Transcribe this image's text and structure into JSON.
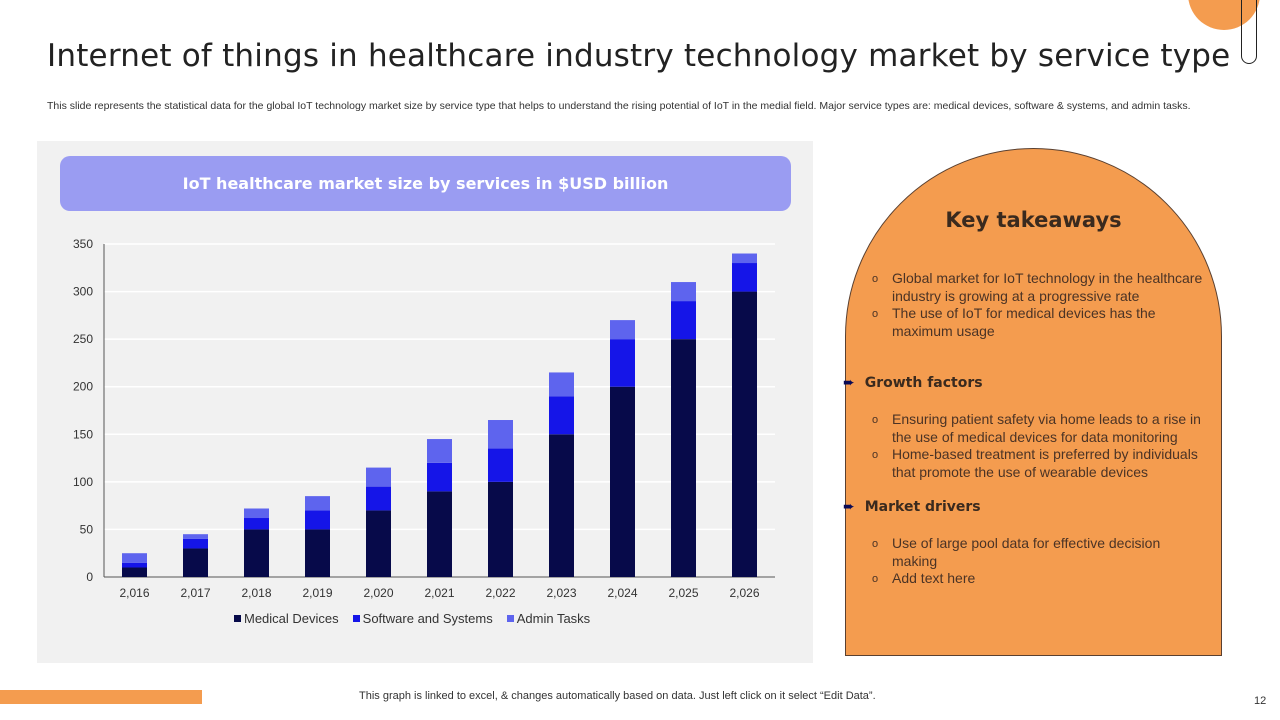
{
  "slide": {
    "title": "Internet of things in healthcare industry technology market by service type",
    "subtitle": "This slide represents the statistical data for the global IoT technology market size by service type that helps to understand the rising potential of IoT in the medial field. Major service types are: medical devices, software & systems, and admin tasks.",
    "footer_note": "This graph is linked to excel, & changes automatically based on data. Just left click on it select “Edit Data”.",
    "page_number": "12"
  },
  "colors": {
    "accent_orange": "#f49c4f",
    "header_purple": "#9a9cf2",
    "medical_devices": "#070a4a",
    "software_systems": "#1515e8",
    "admin_tasks": "#5e64ee"
  },
  "chart_data": {
    "type": "bar",
    "stacked": true,
    "title": "IoT healthcare market size by services in $USD billion",
    "xlabel": "",
    "ylabel": "",
    "categories": [
      "2,016",
      "2,017",
      "2,018",
      "2,019",
      "2,020",
      "2,021",
      "2,022",
      "2,023",
      "2,024",
      "2,025",
      "2,026"
    ],
    "series": [
      {
        "name": "Medical Devices",
        "values": [
          10,
          30,
          50,
          50,
          70,
          90,
          100,
          150,
          200,
          250,
          300
        ]
      },
      {
        "name": "Software and Systems",
        "values": [
          5,
          10,
          12,
          20,
          25,
          30,
          35,
          40,
          50,
          40,
          30
        ]
      },
      {
        "name": "Admin Tasks",
        "values": [
          10,
          5,
          10,
          15,
          20,
          25,
          30,
          25,
          20,
          20,
          10
        ]
      }
    ],
    "ylim": [
      0,
      350
    ],
    "yticks": [
      "0",
      "50",
      "100",
      "150",
      "200",
      "250",
      "300",
      "350"
    ],
    "grid": true,
    "legend": "bottom"
  },
  "takeaways": {
    "title": "Key takeaways",
    "intro_bullets": [
      "Global market for IoT technology in the healthcare industry is growing at a progressive rate",
      "The use of IoT for medical devices has the maximum usage"
    ],
    "sections": [
      {
        "heading": "Growth factors",
        "bullets": [
          "Ensuring patient safety via home leads to a rise in the use of medical devices for data monitoring",
          "Home-based treatment is preferred by individuals that promote the use of wearable devices"
        ]
      },
      {
        "heading": "Market drivers",
        "bullets": [
          "Use of large pool data for effective decision making",
          "Add text here"
        ]
      }
    ],
    "bullet_icon": "hollow-circle-bullet",
    "heading_icon": "arrow-right-icon"
  }
}
